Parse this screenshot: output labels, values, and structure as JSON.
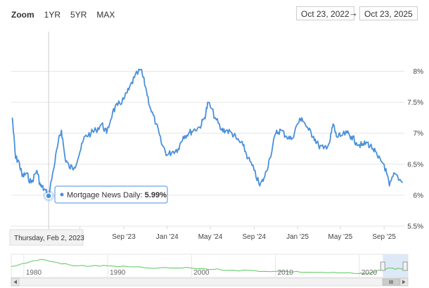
{
  "zoom": {
    "label": "Zoom",
    "buttons": [
      "1YR",
      "5YR",
      "MAX"
    ]
  },
  "range": {
    "from": "Oct 23, 2022",
    "arrow": "→",
    "to": "Oct 23, 2025"
  },
  "tooltip": {
    "series": "Mortgage News Daily:",
    "value": "5.99%",
    "date": "Thursday, Feb 2, 2023"
  },
  "colors": {
    "series": "#4a90d9",
    "navigator": "#5cc85c",
    "navigator_mask": "#d6e4f5"
  },
  "chart_data": {
    "type": "line",
    "series": [
      {
        "name": "Mortgage News Daily",
        "x": [
          "2022-10-23",
          "2022-11-01",
          "2022-11-10",
          "2022-11-20",
          "2022-12-01",
          "2022-12-15",
          "2022-12-31",
          "2023-01-10",
          "2023-01-20",
          "2023-02-02",
          "2023-02-15",
          "2023-03-01",
          "2023-03-10",
          "2023-03-20",
          "2023-04-01",
          "2023-04-15",
          "2023-05-01",
          "2023-05-15",
          "2023-06-01",
          "2023-06-15",
          "2023-07-01",
          "2023-07-15",
          "2023-08-01",
          "2023-08-15",
          "2023-09-01",
          "2023-09-15",
          "2023-10-01",
          "2023-10-19",
          "2023-11-01",
          "2023-11-15",
          "2023-12-01",
          "2023-12-15",
          "2024-01-01",
          "2024-01-15",
          "2024-02-01",
          "2024-02-15",
          "2024-03-01",
          "2024-03-15",
          "2024-04-01",
          "2024-04-15",
          "2024-04-25",
          "2024-05-15",
          "2024-06-01",
          "2024-06-15",
          "2024-07-01",
          "2024-07-15",
          "2024-08-01",
          "2024-08-15",
          "2024-09-01",
          "2024-09-17",
          "2024-10-01",
          "2024-10-15",
          "2024-11-01",
          "2024-11-15",
          "2024-12-01",
          "2024-12-15",
          "2025-01-01",
          "2025-01-13",
          "2025-02-01",
          "2025-02-15",
          "2025-03-01",
          "2025-03-15",
          "2025-04-01",
          "2025-04-11",
          "2025-04-20",
          "2025-05-01",
          "2025-05-20",
          "2025-06-01",
          "2025-06-15",
          "2025-07-01",
          "2025-07-15",
          "2025-08-01",
          "2025-08-15",
          "2025-09-01",
          "2025-09-16",
          "2025-10-01",
          "2025-10-23"
        ],
        "values": [
          7.25,
          6.6,
          6.55,
          6.3,
          6.35,
          6.2,
          6.4,
          6.15,
          6.1,
          5.99,
          6.4,
          6.85,
          7.05,
          6.6,
          6.45,
          6.45,
          6.7,
          6.95,
          7.0,
          7.05,
          7.15,
          7.0,
          7.35,
          7.45,
          7.55,
          7.7,
          7.9,
          8.03,
          7.75,
          7.4,
          7.15,
          6.85,
          6.65,
          6.7,
          6.75,
          6.95,
          7.0,
          7.05,
          7.1,
          7.25,
          7.5,
          7.25,
          7.05,
          7.05,
          7.0,
          6.9,
          6.8,
          6.6,
          6.4,
          6.15,
          6.3,
          6.6,
          7.0,
          7.05,
          6.95,
          6.9,
          7.15,
          7.25,
          7.05,
          6.95,
          6.8,
          6.75,
          6.85,
          7.15,
          6.95,
          6.95,
          7.0,
          6.95,
          6.85,
          6.8,
          6.85,
          6.75,
          6.6,
          6.5,
          6.15,
          6.35,
          6.2
        ]
      }
    ],
    "y_ticks": [
      "8%",
      "7.5%",
      "7%",
      "6.5%",
      "6%",
      "5.5%"
    ],
    "y_tick_values": [
      8,
      7.5,
      7,
      6.5,
      6,
      5.5
    ],
    "x_ticks": [
      "23",
      "Sep '23",
      "Jan '24",
      "May '24",
      "Sep '24",
      "Jan '25",
      "May '25",
      "Sep '25"
    ],
    "x_tick_dates": [
      "2023-05-01",
      "2023-09-01",
      "2024-01-01",
      "2024-05-01",
      "2024-09-01",
      "2025-01-01",
      "2025-05-01",
      "2025-09-01"
    ],
    "ylim": [
      5.5,
      8.2
    ],
    "grid": true,
    "navigator": {
      "labels": [
        "1980",
        "1990",
        "2000",
        "2010",
        "2020"
      ],
      "label_years": [
        1980,
        1990,
        2000,
        2010,
        2020
      ],
      "range_years": [
        1978.5,
        2025.8
      ],
      "selected_years": [
        2022.8,
        2025.8
      ],
      "series_years": [
        1978.5,
        1982,
        1986,
        1990,
        1995,
        2000,
        2005,
        2010,
        2015,
        2020,
        2021,
        2022.5,
        2023.8,
        2025.8
      ],
      "series_values": [
        9.5,
        16,
        10,
        10,
        8,
        8,
        6,
        5,
        4,
        3,
        2.8,
        6,
        7.8,
        6.2
      ]
    }
  }
}
